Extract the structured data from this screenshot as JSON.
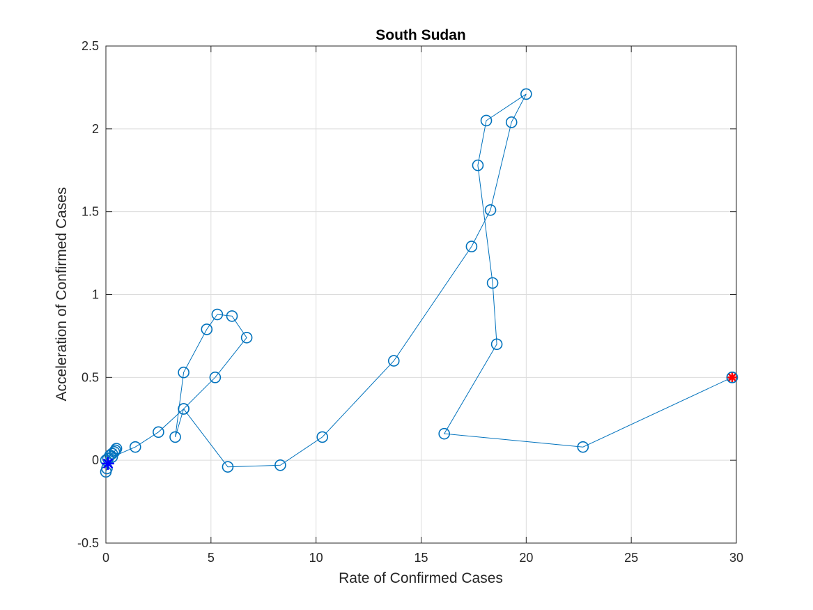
{
  "chart_data": {
    "type": "line",
    "title": "South Sudan",
    "xlabel": "Rate of Confirmed Cases",
    "ylabel": "Acceleration of Confirmed Cases",
    "xlim": [
      0,
      30
    ],
    "ylim": [
      -0.5,
      2.5
    ],
    "xticks": [
      "0",
      "5",
      "10",
      "15",
      "20",
      "25",
      "30"
    ],
    "yticks": [
      "-0.5",
      "0",
      "0.5",
      "1",
      "1.5",
      "2",
      "2.5"
    ],
    "grid": true,
    "series": [
      {
        "marker": "circle",
        "color": "#0072BD",
        "x": [
          0.0,
          0.05,
          0.0,
          0.1,
          0.2,
          0.3,
          0.45,
          0.5,
          0.4,
          0.3,
          1.4,
          2.5,
          3.7,
          3.3,
          3.7,
          4.8,
          5.3,
          6.0,
          6.7,
          5.2,
          3.7,
          5.8,
          8.3,
          10.3,
          13.7,
          17.4,
          18.3,
          19.3,
          20.0,
          18.1,
          17.7,
          18.4,
          18.6,
          16.1,
          22.7,
          29.8
        ],
        "y": [
          -0.07,
          -0.05,
          0.0,
          0.01,
          0.03,
          0.04,
          0.06,
          0.07,
          0.05,
          0.02,
          0.08,
          0.17,
          0.31,
          0.14,
          0.53,
          0.79,
          0.88,
          0.87,
          0.74,
          0.5,
          0.31,
          -0.04,
          -0.03,
          0.14,
          0.6,
          1.29,
          1.51,
          2.04,
          2.21,
          2.05,
          1.78,
          1.07,
          0.7,
          0.16,
          0.08,
          0.5
        ]
      }
    ],
    "start_marker": {
      "x": 0.1,
      "y": -0.02,
      "marker": "asterisk",
      "color": "#0000FF"
    },
    "end_marker": {
      "x": 29.8,
      "y": 0.5,
      "marker": "asterisk-circle",
      "color": "#FF0000"
    }
  }
}
